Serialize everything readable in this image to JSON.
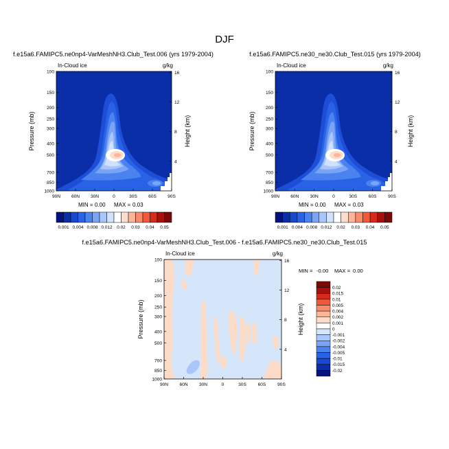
{
  "title": "DJF",
  "chart_data": [
    {
      "type": "contour",
      "title": "f.e15a6.FAMIPC5.ne0np4-VarMeshNH3.Club_Test.006 (yrs 1979-2004)",
      "variable": "In-Cloud ice",
      "units": "g/kg",
      "xlabel": "",
      "ylabel": "Pressure (mb)",
      "ylabel_right": "Height (km)",
      "x_ticks": [
        "90N",
        "60N",
        "30N",
        "0",
        "30S",
        "60S",
        "90S"
      ],
      "y_ticks": [
        100,
        150,
        200,
        250,
        300,
        400,
        500,
        700,
        850,
        1000
      ],
      "height_ticks": [
        4,
        8,
        12,
        16
      ],
      "min_label": "MIN =",
      "min": "0.00",
      "max_label": "MAX =",
      "max": "0.03"
    },
    {
      "type": "contour",
      "title": "f.e15a6.FAMIPC5.ne30_ne30.Club_Test.015 (yrs 1979-2004)",
      "variable": "In-Cloud ice",
      "units": "g/kg",
      "xlabel": "",
      "ylabel": "Pressure (mb)",
      "ylabel_right": "Height (km)",
      "x_ticks": [
        "90N",
        "60N",
        "30N",
        "0",
        "30S",
        "60S",
        "90S"
      ],
      "y_ticks": [
        100,
        150,
        200,
        250,
        300,
        400,
        500,
        700,
        850,
        1000
      ],
      "height_ticks": [
        4,
        8,
        12,
        16
      ],
      "min_label": "MIN =",
      "min": "0.00",
      "max_label": "MAX =",
      "max": "0.03"
    },
    {
      "type": "contour",
      "title": "f.e15a6.FAMIPC5.ne0np4-VarMeshNH3.Club_Test.006 - f.e15a6.FAMIPC5.ne30_ne30.Club_Test.015",
      "variable": "In-Cloud ice",
      "units": "g/kg",
      "ylabel": "Pressure (mb)",
      "ylabel_right": "Height (km)",
      "x_ticks": [
        "90N",
        "60N",
        "30N",
        "0",
        "30S",
        "60S",
        "90S"
      ],
      "y_ticks": [
        100,
        150,
        200,
        250,
        300,
        400,
        500,
        700,
        850,
        1000
      ],
      "height_ticks": [
        4,
        8,
        12,
        16
      ],
      "min_label": "MIN =",
      "min": "-0.00",
      "max_label": "MAX =",
      "max": "0.00"
    }
  ],
  "colorbar_top": {
    "labels": [
      "0.001",
      "0.004",
      "0.008",
      "0.012",
      "0.02",
      "0.03",
      "0.04",
      "0.05"
    ],
    "colors": [
      "#04127e",
      "#0a2ea8",
      "#1848d0",
      "#2a62e6",
      "#4a82f0",
      "#7aa4f6",
      "#a8c6fa",
      "#d2e2fc",
      "#ffffff",
      "#fcdccc",
      "#fbb69a",
      "#f88c6a",
      "#f05a3a",
      "#d62a1a",
      "#a8100c",
      "#7a0a08"
    ]
  },
  "colorbar_diff": {
    "labels": [
      "0.02",
      "0.015",
      "0.01",
      "0.005",
      "0.004",
      "0.002",
      "0.001",
      "0",
      "-0.001",
      "-0.002",
      "-0.004",
      "-0.005",
      "-0.01",
      "-0.015",
      "-0.02"
    ],
    "colors": [
      "#7a0a08",
      "#a8100c",
      "#d62a1a",
      "#f05a3a",
      "#f88c6a",
      "#fbb69a",
      "#fcdcc6",
      "#ffffff",
      "#d6e6fa",
      "#a8c6fa",
      "#7aa4f6",
      "#4a82f0",
      "#2a62e6",
      "#1848d0",
      "#0a2ea8",
      "#04127e"
    ]
  }
}
